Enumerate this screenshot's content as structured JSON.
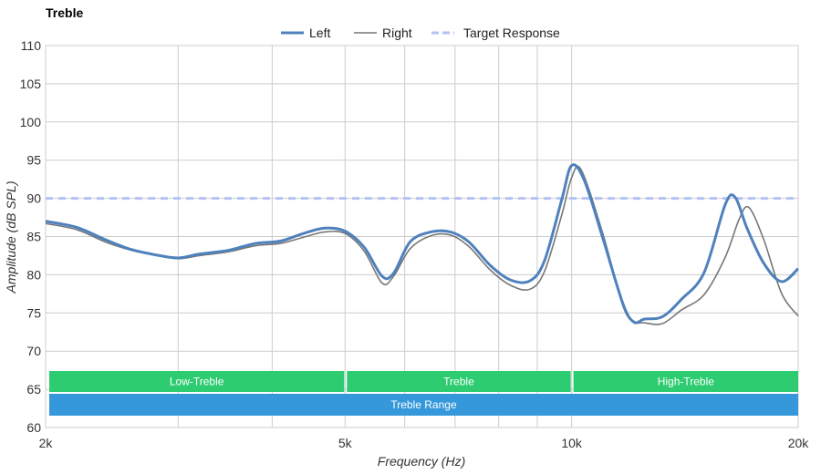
{
  "chart_data": {
    "type": "line",
    "title": "Treble",
    "xlabel": "Frequency (Hz)",
    "ylabel": "Amplitude (dB SPL)",
    "x_scale": "log",
    "xlim": [
      2000,
      20000
    ],
    "ylim": [
      60,
      110
    ],
    "x_ticks": [
      {
        "value": 2000,
        "label": "2k"
      },
      {
        "value": 5000,
        "label": "5k"
      },
      {
        "value": 10000,
        "label": "10k"
      },
      {
        "value": 20000,
        "label": "20k"
      }
    ],
    "x_gridlines": [
      2000,
      3000,
      4000,
      5000,
      6000,
      7000,
      8000,
      9000,
      10000,
      20000
    ],
    "y_ticks": [
      60,
      65,
      70,
      75,
      80,
      85,
      90,
      95,
      100,
      105,
      110
    ],
    "grid": true,
    "legend": "top-center",
    "series": [
      {
        "name": "Left",
        "style": "solid-thick",
        "color": "#4f81bd",
        "points": [
          [
            2000,
            87
          ],
          [
            2200,
            86.2
          ],
          [
            2400,
            84.6
          ],
          [
            2600,
            83.3
          ],
          [
            2800,
            82.6
          ],
          [
            3000,
            82.2
          ],
          [
            3200,
            82.7
          ],
          [
            3500,
            83.2
          ],
          [
            3800,
            84.1
          ],
          [
            4100,
            84.4
          ],
          [
            4400,
            85.4
          ],
          [
            4700,
            86.1
          ],
          [
            5000,
            85.7
          ],
          [
            5300,
            83.6
          ],
          [
            5600,
            79.8
          ],
          [
            5800,
            80.2
          ],
          [
            6100,
            84.3
          ],
          [
            6500,
            85.6
          ],
          [
            6900,
            85.6
          ],
          [
            7300,
            84.3
          ],
          [
            7800,
            81.2
          ],
          [
            8300,
            79.3
          ],
          [
            8800,
            79.2
          ],
          [
            9200,
            81.8
          ],
          [
            9700,
            89.8
          ],
          [
            10000,
            94.3
          ],
          [
            10400,
            92.3
          ],
          [
            11000,
            84.8
          ],
          [
            11700,
            76.2
          ],
          [
            12100,
            73.8
          ],
          [
            12500,
            74.2
          ],
          [
            13200,
            74.5
          ],
          [
            14000,
            76.8
          ],
          [
            15000,
            80.3
          ],
          [
            16000,
            89.2
          ],
          [
            16500,
            90.1
          ],
          [
            17100,
            86.1
          ],
          [
            18000,
            81.5
          ],
          [
            19000,
            79.1
          ],
          [
            20000,
            80.8
          ]
        ]
      },
      {
        "name": "Right",
        "style": "solid-thin",
        "color": "#777777",
        "points": [
          [
            2000,
            86.7
          ],
          [
            2200,
            85.9
          ],
          [
            2400,
            84.3
          ],
          [
            2600,
            83.2
          ],
          [
            2800,
            82.6
          ],
          [
            3000,
            82.1
          ],
          [
            3200,
            82.5
          ],
          [
            3500,
            83
          ],
          [
            3800,
            83.8
          ],
          [
            4100,
            84.1
          ],
          [
            4400,
            84.9
          ],
          [
            4700,
            85.6
          ],
          [
            5000,
            85.4
          ],
          [
            5300,
            83.1
          ],
          [
            5600,
            78.9
          ],
          [
            5800,
            79.8
          ],
          [
            6100,
            83.4
          ],
          [
            6500,
            85.1
          ],
          [
            6900,
            85.2
          ],
          [
            7300,
            83.7
          ],
          [
            7800,
            80.6
          ],
          [
            8300,
            78.6
          ],
          [
            8800,
            78.1
          ],
          [
            9200,
            80.4
          ],
          [
            9700,
            87.8
          ],
          [
            10000,
            92.7
          ],
          [
            10300,
            93.7
          ],
          [
            11000,
            85.4
          ],
          [
            11700,
            75.9
          ],
          [
            12100,
            73.9
          ],
          [
            12500,
            73.7
          ],
          [
            13200,
            73.6
          ],
          [
            14000,
            75.4
          ],
          [
            15000,
            77.4
          ],
          [
            16000,
            82.3
          ],
          [
            16700,
            87.3
          ],
          [
            17200,
            88.8
          ],
          [
            18000,
            84.6
          ],
          [
            19000,
            77.6
          ],
          [
            20000,
            74.6
          ]
        ]
      },
      {
        "name": "Target Response",
        "style": "dashed",
        "color": "#b4c2f8",
        "points": [
          [
            2000,
            90
          ],
          [
            20000,
            90
          ]
        ]
      }
    ],
    "bands": [
      {
        "label": "Low-Treble",
        "from": 2000,
        "to": 5000,
        "color": "#2ecc71"
      },
      {
        "label": "Treble",
        "from": 5000,
        "to": 10000,
        "color": "#2ecc71"
      },
      {
        "label": "High-Treble",
        "from": 10000,
        "to": 20000,
        "color": "#2ecc71"
      },
      {
        "label": "Treble Range",
        "from": 2000,
        "to": 20000,
        "color": "#3498db"
      }
    ]
  }
}
